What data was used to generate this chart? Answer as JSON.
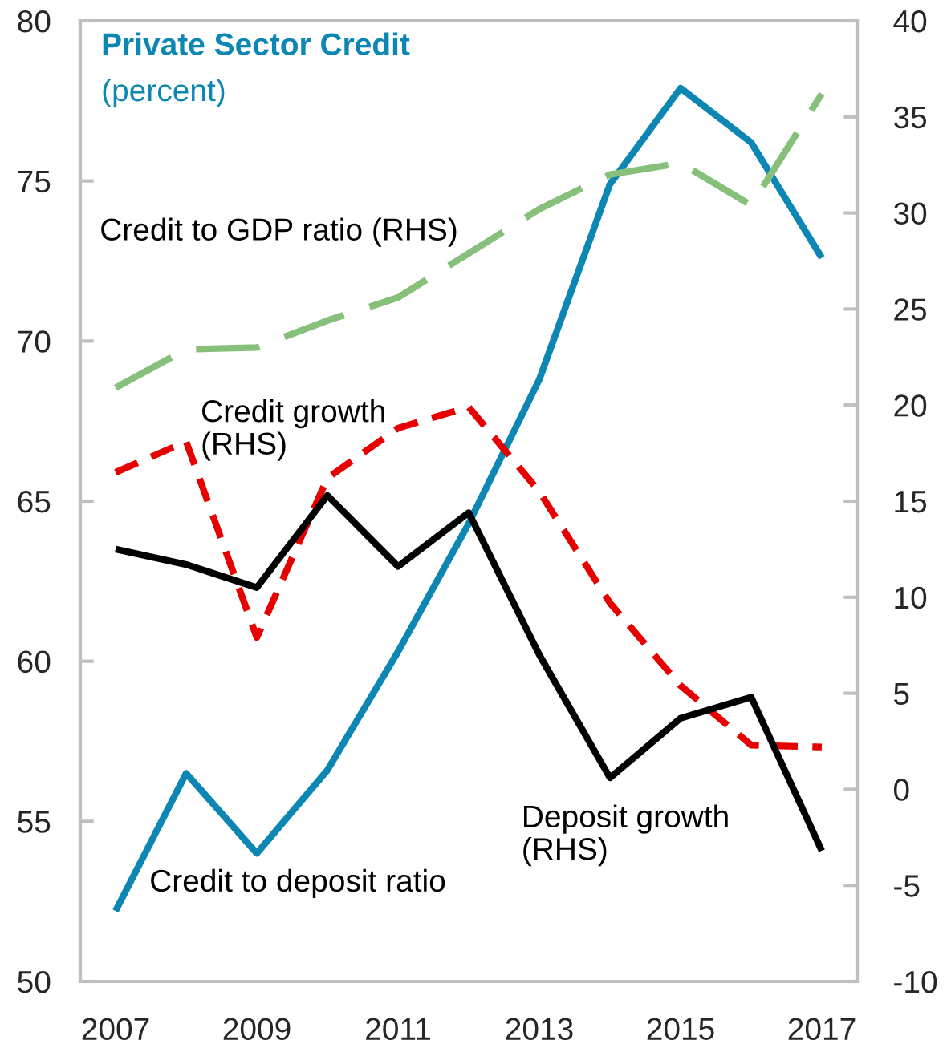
{
  "chart_data": {
    "type": "line",
    "title": "Private Sector Credit",
    "subtitle": "(percent)",
    "categories": [
      "2007",
      null,
      "2009",
      null,
      "2011",
      null,
      "2013",
      null,
      "2015",
      null,
      "2017"
    ],
    "series": [
      {
        "name": "Credit to deposit ratio",
        "color": "#0c87b3",
        "axis": "y",
        "line_style": "solid",
        "values": [
          52.2,
          56.5,
          54.0,
          56.6,
          60.3,
          64.3,
          68.8,
          74.9,
          77.9,
          76.2,
          72.6
        ]
      },
      {
        "name": "Credit to GDP ratio (RHS)",
        "color": "#86c07a",
        "axis": "y2",
        "line_style": "dashed",
        "values": [
          20.9,
          22.9,
          23.0,
          24.4,
          25.6,
          27.9,
          30.2,
          32.0,
          32.6,
          30.4,
          36.2
        ]
      },
      {
        "name": "Credit growth\n(RHS)",
        "color": "#e60000",
        "axis": "y2",
        "line_style": "dashed",
        "values": [
          16.5,
          18.1,
          7.9,
          16.2,
          18.8,
          19.9,
          15.5,
          9.7,
          5.4,
          2.3,
          2.2
        ]
      },
      {
        "name": "Deposit growth\n(RHS)",
        "color": "#000000",
        "axis": "y2",
        "line_style": "solid",
        "values": [
          12.5,
          11.7,
          10.5,
          15.3,
          11.6,
          14.4,
          7.0,
          0.6,
          3.7,
          4.8,
          -3.2
        ]
      }
    ],
    "ylim": [
      50,
      80
    ],
    "yticks": [
      50,
      55,
      60,
      65,
      70,
      75,
      80
    ],
    "y2lim": [
      -10,
      40
    ],
    "y2ticks": [
      -10,
      -5,
      0,
      5,
      10,
      15,
      20,
      25,
      30,
      35,
      40
    ],
    "grid": false
  }
}
